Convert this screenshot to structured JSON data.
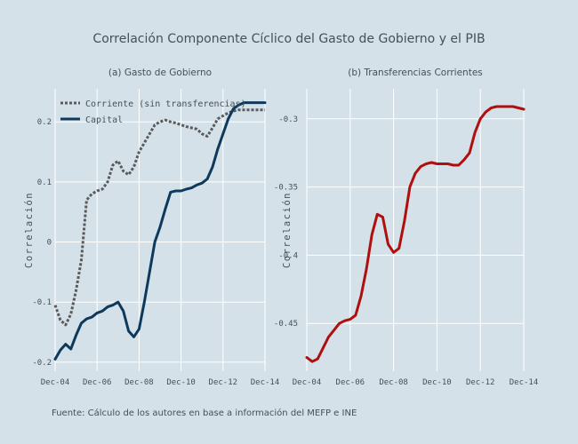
{
  "title": "Correlación Componente Cíclico del Gasto de Gobierno y el PIB",
  "footer": "Fuente: Cálculo de los autores en base a información del MEFP e INE",
  "colors": {
    "background": "#d5e1e8",
    "grid": "#ffffff",
    "corriente": "#5a5a5a",
    "capital": "#0d3a5c",
    "transferencias": "#b00f0f",
    "text": "#44505a"
  },
  "chart_data": [
    {
      "type": "line",
      "title": "(a) Gasto de Gobierno",
      "ylabel": "Correlación",
      "xlabel": "",
      "x_ticks": [
        "Dec-04",
        "Dec-06",
        "Dec-08",
        "Dec-10",
        "Dec-12",
        "Dec-14"
      ],
      "y_ticks": [
        "-0.2",
        "-0.1",
        "0",
        "0.1",
        "0.2"
      ],
      "xlim": [
        2004.92,
        2014.92
      ],
      "ylim": [
        -0.215,
        0.255
      ],
      "grid": true,
      "legend_position": "top-left",
      "series": [
        {
          "name": "Corriente (sin transferencias)",
          "style": "dotted",
          "color": "#5a5a5a",
          "x": [
            2004.92,
            2005.17,
            2005.42,
            2005.67,
            2005.92,
            2006.17,
            2006.42,
            2006.67,
            2006.92,
            2007.17,
            2007.42,
            2007.67,
            2007.92,
            2008.17,
            2008.42,
            2008.67,
            2008.92,
            2009.17,
            2009.42,
            2009.67,
            2009.92,
            2010.17,
            2010.42,
            2010.67,
            2010.92,
            2011.17,
            2011.42,
            2011.67,
            2011.92,
            2012.17,
            2012.42,
            2012.67,
            2012.92,
            2013.17,
            2013.42,
            2013.67,
            2013.92,
            2014.17,
            2014.42,
            2014.67,
            2014.92
          ],
          "values": [
            -0.105,
            -0.13,
            -0.138,
            -0.12,
            -0.08,
            -0.03,
            0.07,
            0.08,
            0.085,
            0.088,
            0.1,
            0.128,
            0.135,
            0.118,
            0.112,
            0.125,
            0.15,
            0.165,
            0.18,
            0.195,
            0.2,
            0.203,
            0.2,
            0.198,
            0.195,
            0.192,
            0.19,
            0.188,
            0.18,
            0.176,
            0.19,
            0.205,
            0.21,
            0.215,
            0.218,
            0.22,
            0.22,
            0.22,
            0.22,
            0.22,
            0.22
          ]
        },
        {
          "name": "Capital",
          "style": "solid",
          "color": "#0d3a5c",
          "x": [
            2004.92,
            2005.17,
            2005.42,
            2005.67,
            2005.92,
            2006.17,
            2006.42,
            2006.67,
            2006.92,
            2007.17,
            2007.42,
            2007.67,
            2007.92,
            2008.17,
            2008.42,
            2008.67,
            2008.92,
            2009.17,
            2009.42,
            2009.67,
            2009.92,
            2010.17,
            2010.42,
            2010.67,
            2010.92,
            2011.17,
            2011.42,
            2011.67,
            2011.92,
            2012.17,
            2012.42,
            2012.67,
            2012.92,
            2013.17,
            2013.42,
            2013.67,
            2013.92,
            2014.17,
            2014.42,
            2014.67,
            2014.92
          ],
          "values": [
            -0.195,
            -0.18,
            -0.17,
            -0.178,
            -0.155,
            -0.135,
            -0.128,
            -0.125,
            -0.118,
            -0.115,
            -0.108,
            -0.105,
            -0.1,
            -0.115,
            -0.148,
            -0.158,
            -0.145,
            -0.1,
            -0.05,
            0.0,
            0.025,
            0.055,
            0.083,
            0.085,
            0.085,
            0.088,
            0.09,
            0.095,
            0.098,
            0.105,
            0.125,
            0.155,
            0.18,
            0.205,
            0.222,
            0.228,
            0.232,
            0.232,
            0.232,
            0.232,
            0.232
          ]
        }
      ]
    },
    {
      "type": "line",
      "title": "(b) Transferencias Corrientes",
      "ylabel": "Correlación",
      "xlabel": "",
      "x_ticks": [
        "Dec-04",
        "Dec-06",
        "Dec-08",
        "Dec-10",
        "Dec-12",
        "Dec-14"
      ],
      "y_ticks": [
        "-0.3",
        "-0.35",
        "-0.4",
        "-0.45"
      ],
      "xlim": [
        2004.92,
        2014.92
      ],
      "ylim": [
        -0.485,
        -0.278
      ],
      "grid": true,
      "series": [
        {
          "name": "",
          "style": "solid",
          "color": "#b00f0f",
          "x": [
            2004.92,
            2005.17,
            2005.42,
            2005.67,
            2005.92,
            2006.17,
            2006.42,
            2006.67,
            2006.92,
            2007.17,
            2007.42,
            2007.67,
            2007.92,
            2008.17,
            2008.42,
            2008.67,
            2008.92,
            2009.17,
            2009.42,
            2009.67,
            2009.92,
            2010.17,
            2010.42,
            2010.67,
            2010.92,
            2011.17,
            2011.42,
            2011.67,
            2011.92,
            2012.17,
            2012.42,
            2012.67,
            2012.92,
            2013.17,
            2013.42,
            2013.67,
            2013.92,
            2014.17,
            2014.42,
            2014.67,
            2014.92
          ],
          "values": [
            -0.475,
            -0.478,
            -0.476,
            -0.468,
            -0.46,
            -0.455,
            -0.45,
            -0.448,
            -0.447,
            -0.444,
            -0.43,
            -0.41,
            -0.385,
            -0.37,
            -0.372,
            -0.392,
            -0.398,
            -0.395,
            -0.375,
            -0.35,
            -0.34,
            -0.335,
            -0.333,
            -0.332,
            -0.333,
            -0.333,
            -0.333,
            -0.334,
            -0.334,
            -0.33,
            -0.325,
            -0.31,
            -0.3,
            -0.295,
            -0.292,
            -0.291,
            -0.291,
            -0.291,
            -0.291,
            -0.292,
            -0.293
          ]
        }
      ]
    }
  ]
}
